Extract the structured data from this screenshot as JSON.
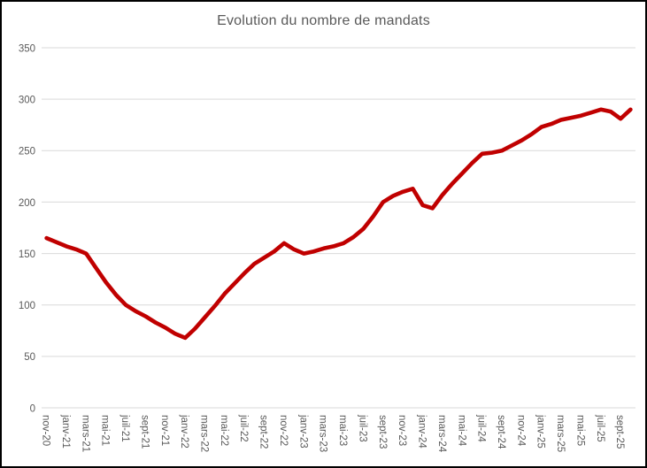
{
  "window": {
    "title": "Evolution du nombre de mandats"
  },
  "chart_data": {
    "type": "line",
    "title": "Evolution du nombre de mandats",
    "xlabel": "",
    "ylabel": "",
    "legend": "none",
    "grid": "horizontal",
    "ylim": [
      0,
      350
    ],
    "y_ticks": [
      0,
      50,
      100,
      150,
      200,
      250,
      300,
      350
    ],
    "categories": [
      "nov-20",
      "déc-20",
      "janv-21",
      "févr-21",
      "mars-21",
      "avr-21",
      "mai-21",
      "juin-21",
      "juil-21",
      "août-21",
      "sept-21",
      "oct-21",
      "nov-21",
      "déc-21",
      "janv-22",
      "févr-22",
      "mars-22",
      "avr-22",
      "mai-22",
      "juin-22",
      "juil-22",
      "août-22",
      "sept-22",
      "oct-22",
      "nov-22",
      "déc-22",
      "janv-23",
      "févr-23",
      "mars-23",
      "avr-23",
      "mai-23",
      "juin-23",
      "juil-23",
      "août-23",
      "sept-23",
      "oct-23",
      "nov-23",
      "déc-23",
      "janv-24",
      "févr-24",
      "mars-24",
      "avr-24",
      "mai-24",
      "juin-24",
      "juil-24",
      "août-24",
      "sept-24",
      "oct-24",
      "nov-24",
      "déc-24",
      "janv-25",
      "févr-25",
      "mars-25",
      "avr-25",
      "mai-25",
      "juin-25",
      "juil-25",
      "août-25",
      "sept-25",
      "oct-25"
    ],
    "values": [
      165,
      161,
      157,
      154,
      150,
      136,
      122,
      110,
      100,
      94,
      89,
      83,
      78,
      72,
      68,
      77,
      88,
      99,
      111,
      121,
      131,
      140,
      146,
      152,
      160,
      154,
      150,
      152,
      155,
      157,
      160,
      166,
      174,
      186,
      200,
      206,
      210,
      213,
      197,
      194,
      207,
      218,
      228,
      238,
      247,
      248,
      250,
      255,
      260,
      266,
      273,
      276,
      280,
      282,
      284,
      287,
      290,
      288,
      281,
      290
    ],
    "x_tick_labels": [
      "nov-20",
      "janv-21",
      "mars-21",
      "mai-21",
      "juil-21",
      "sept-21",
      "nov-21",
      "janv-22",
      "mars-22",
      "mai-22",
      "juil-22",
      "sept-22",
      "nov-22",
      "janv-23",
      "mars-23",
      "mai-23",
      "juil-23",
      "sept-23",
      "nov-23",
      "janv-24",
      "mars-24",
      "mai-24",
      "juil-24",
      "sept-24",
      "nov-24",
      "janv-25",
      "mars-25",
      "mai-25",
      "juil-25",
      "sept-25"
    ],
    "line_color": "#C00000",
    "grid_color": "#D9D9D9",
    "text_color": "#595959",
    "background_color": "#FFFFFF",
    "border_color": "#000000"
  }
}
